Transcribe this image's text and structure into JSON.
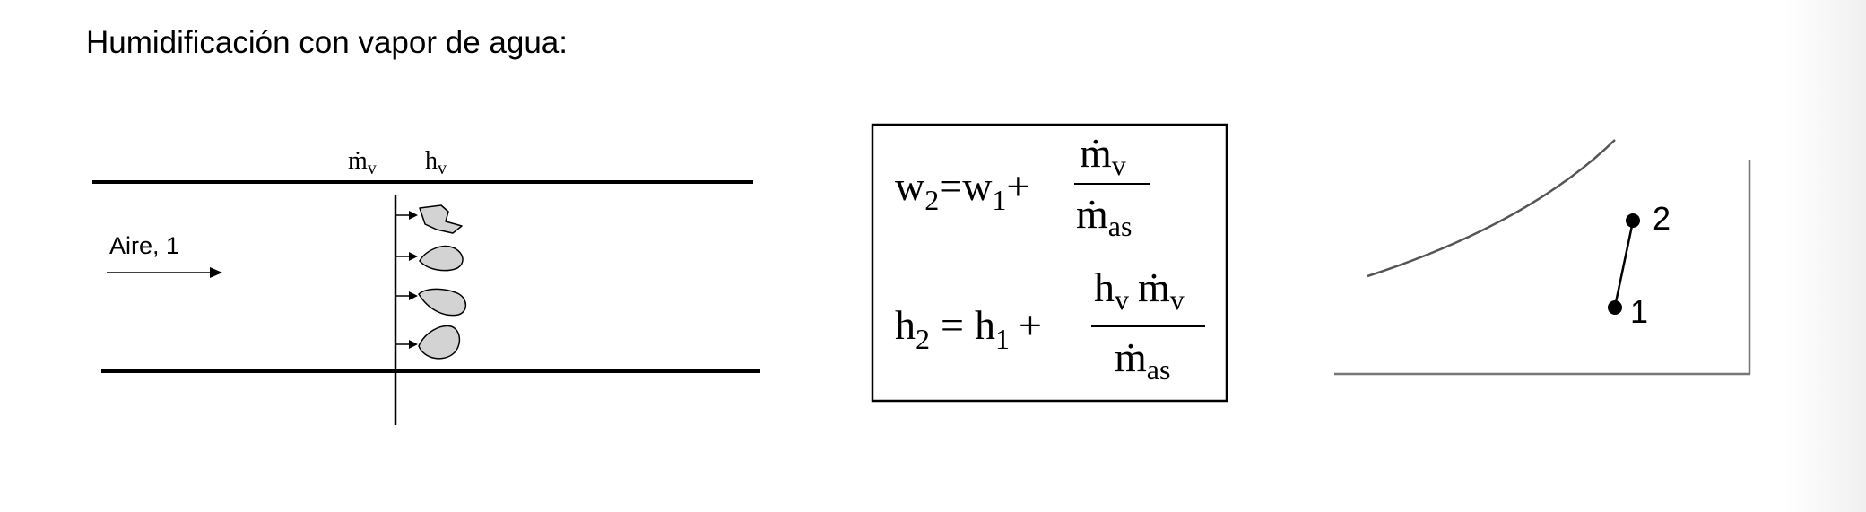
{
  "title": "Humidificación con vapor de agua:",
  "duct": {
    "inlet_label": "Aire, 1",
    "mass_flow_label": {
      "base": "ṁ",
      "sub": "v"
    },
    "enthalpy_label": {
      "base": "h",
      "sub": "v"
    }
  },
  "equations": {
    "eq1": {
      "lhs": "w",
      "lhs_sub": "2",
      "eq": "=",
      "term": "w",
      "term_sub": "1",
      "plus": "+",
      "num": "ṁ",
      "num_sub": "v",
      "den": "ṁ",
      "den_sub": "as"
    },
    "eq2": {
      "lhs": "h",
      "lhs_sub": "2",
      "eq": "=",
      "term": "h",
      "term_sub": "1",
      "plus": "+",
      "num_a": "h",
      "num_a_sub": "v",
      "num_b": "ṁ",
      "num_b_sub": "v",
      "den": "ṁ",
      "den_sub": "as"
    }
  },
  "psychro": {
    "point1_label": "1",
    "point2_label": "2"
  }
}
